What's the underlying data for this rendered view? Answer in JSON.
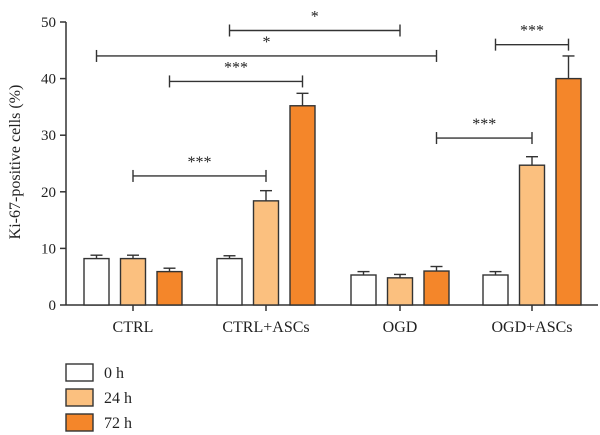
{
  "chart_data": {
    "type": "bar",
    "ylabel": "Ki-67-positive cells (%)",
    "ylim": [
      0,
      50
    ],
    "yticks": [
      0,
      10,
      20,
      30,
      40,
      50
    ],
    "categories": [
      "CTRL",
      "CTRL+ASCs",
      "OGD",
      "OGD+ASCs"
    ],
    "series": [
      {
        "name": "0 h",
        "color": "#ffffff",
        "values": [
          8.2,
          8.2,
          5.3,
          5.3
        ],
        "errors": [
          0.6,
          0.5,
          0.6,
          0.6
        ]
      },
      {
        "name": "24 h",
        "color": "#fbc07f",
        "values": [
          8.2,
          18.4,
          4.8,
          24.7
        ],
        "errors": [
          0.6,
          1.8,
          0.6,
          1.5
        ]
      },
      {
        "name": "72 h",
        "color": "#f4862a",
        "values": [
          5.9,
          35.2,
          6.0,
          40.0
        ],
        "errors": [
          0.6,
          2.2,
          0.8,
          4.0
        ]
      }
    ],
    "significance": [
      {
        "from": [
          1,
          0
        ],
        "to": [
          2,
          1
        ],
        "y": 48.5,
        "label": "*"
      },
      {
        "from": [
          0,
          0
        ],
        "to": [
          2,
          2
        ],
        "y": 44.0,
        "label": "*"
      },
      {
        "from": [
          0,
          2
        ],
        "to": [
          1,
          2
        ],
        "y": 39.5,
        "label": "***"
      },
      {
        "from": [
          0,
          1
        ],
        "to": [
          1,
          1
        ],
        "y": 22.8,
        "label": "***"
      },
      {
        "from": [
          3,
          0
        ],
        "to": [
          3,
          2
        ],
        "y": 46.0,
        "label": "***"
      },
      {
        "from": [
          2,
          2
        ],
        "to": [
          3,
          1
        ],
        "y": 29.5,
        "label": "***"
      }
    ],
    "legend_position": "bottom-left"
  }
}
